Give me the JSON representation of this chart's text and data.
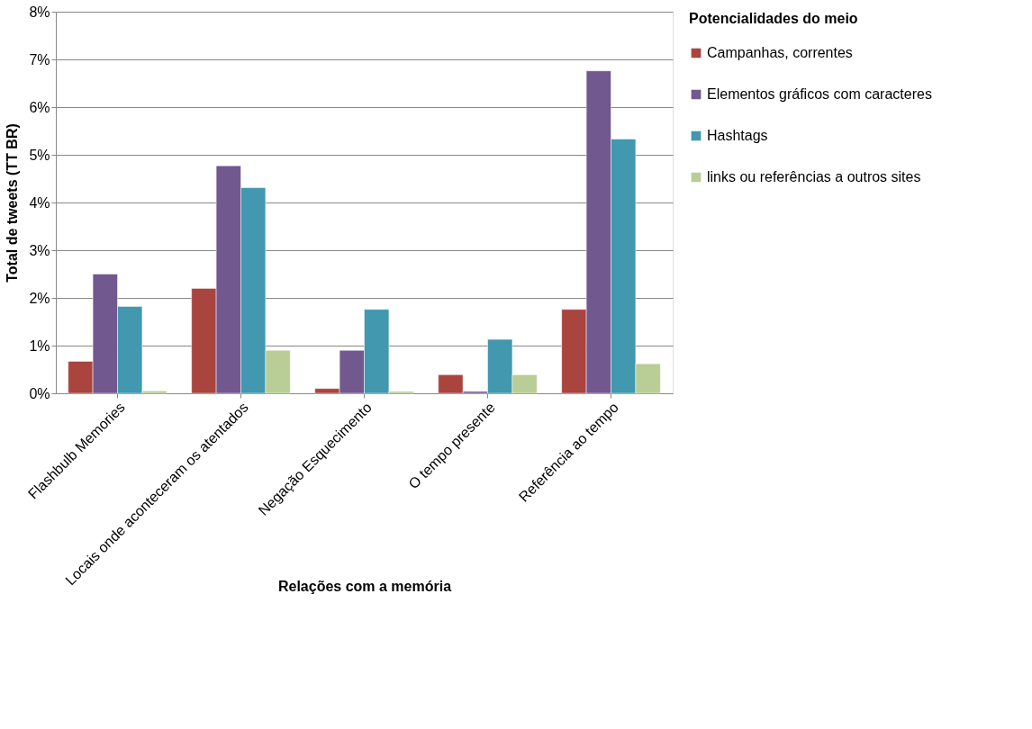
{
  "chart_data": {
    "type": "bar",
    "xlabel": "Relações com a memória",
    "ylabel": "Total de tweets (TT BR)",
    "legend_title": "Potencialidades do meio",
    "categories": [
      "Flashbulb Memories",
      "Locais onde aconteceram os atentados",
      "Negação Esquecimento",
      "O tempo presente",
      "Referência ao tempo"
    ],
    "series": [
      {
        "name": "Campanhas, correntes",
        "color": "#a9443f",
        "values": [
          0.67,
          2.2,
          0.1,
          0.39,
          1.76
        ]
      },
      {
        "name": "Elementos gráficos com caracteres",
        "color": "#71588f",
        "values": [
          2.5,
          4.77,
          0.9,
          0.04,
          6.76
        ]
      },
      {
        "name": "Hashtags",
        "color": "#4198af",
        "values": [
          1.82,
          4.31,
          1.76,
          1.13,
          5.33
        ]
      },
      {
        "name": "links ou referências a outros sites",
        "color": "#b9cd96",
        "values": [
          0.05,
          0.9,
          0.04,
          0.39,
          0.62
        ]
      }
    ],
    "ylim": [
      0,
      8
    ],
    "yticks": [
      {
        "value": 0,
        "label": "0%"
      },
      {
        "value": 1,
        "label": "1%"
      },
      {
        "value": 2,
        "label": "2%"
      },
      {
        "value": 3,
        "label": "3%"
      },
      {
        "value": 4,
        "label": "4%"
      },
      {
        "value": 5,
        "label": "5%"
      },
      {
        "value": 6,
        "label": "6%"
      },
      {
        "value": 7,
        "label": "7%"
      },
      {
        "value": 8,
        "label": "8%"
      }
    ],
    "grid": "y",
    "legend": "right"
  }
}
